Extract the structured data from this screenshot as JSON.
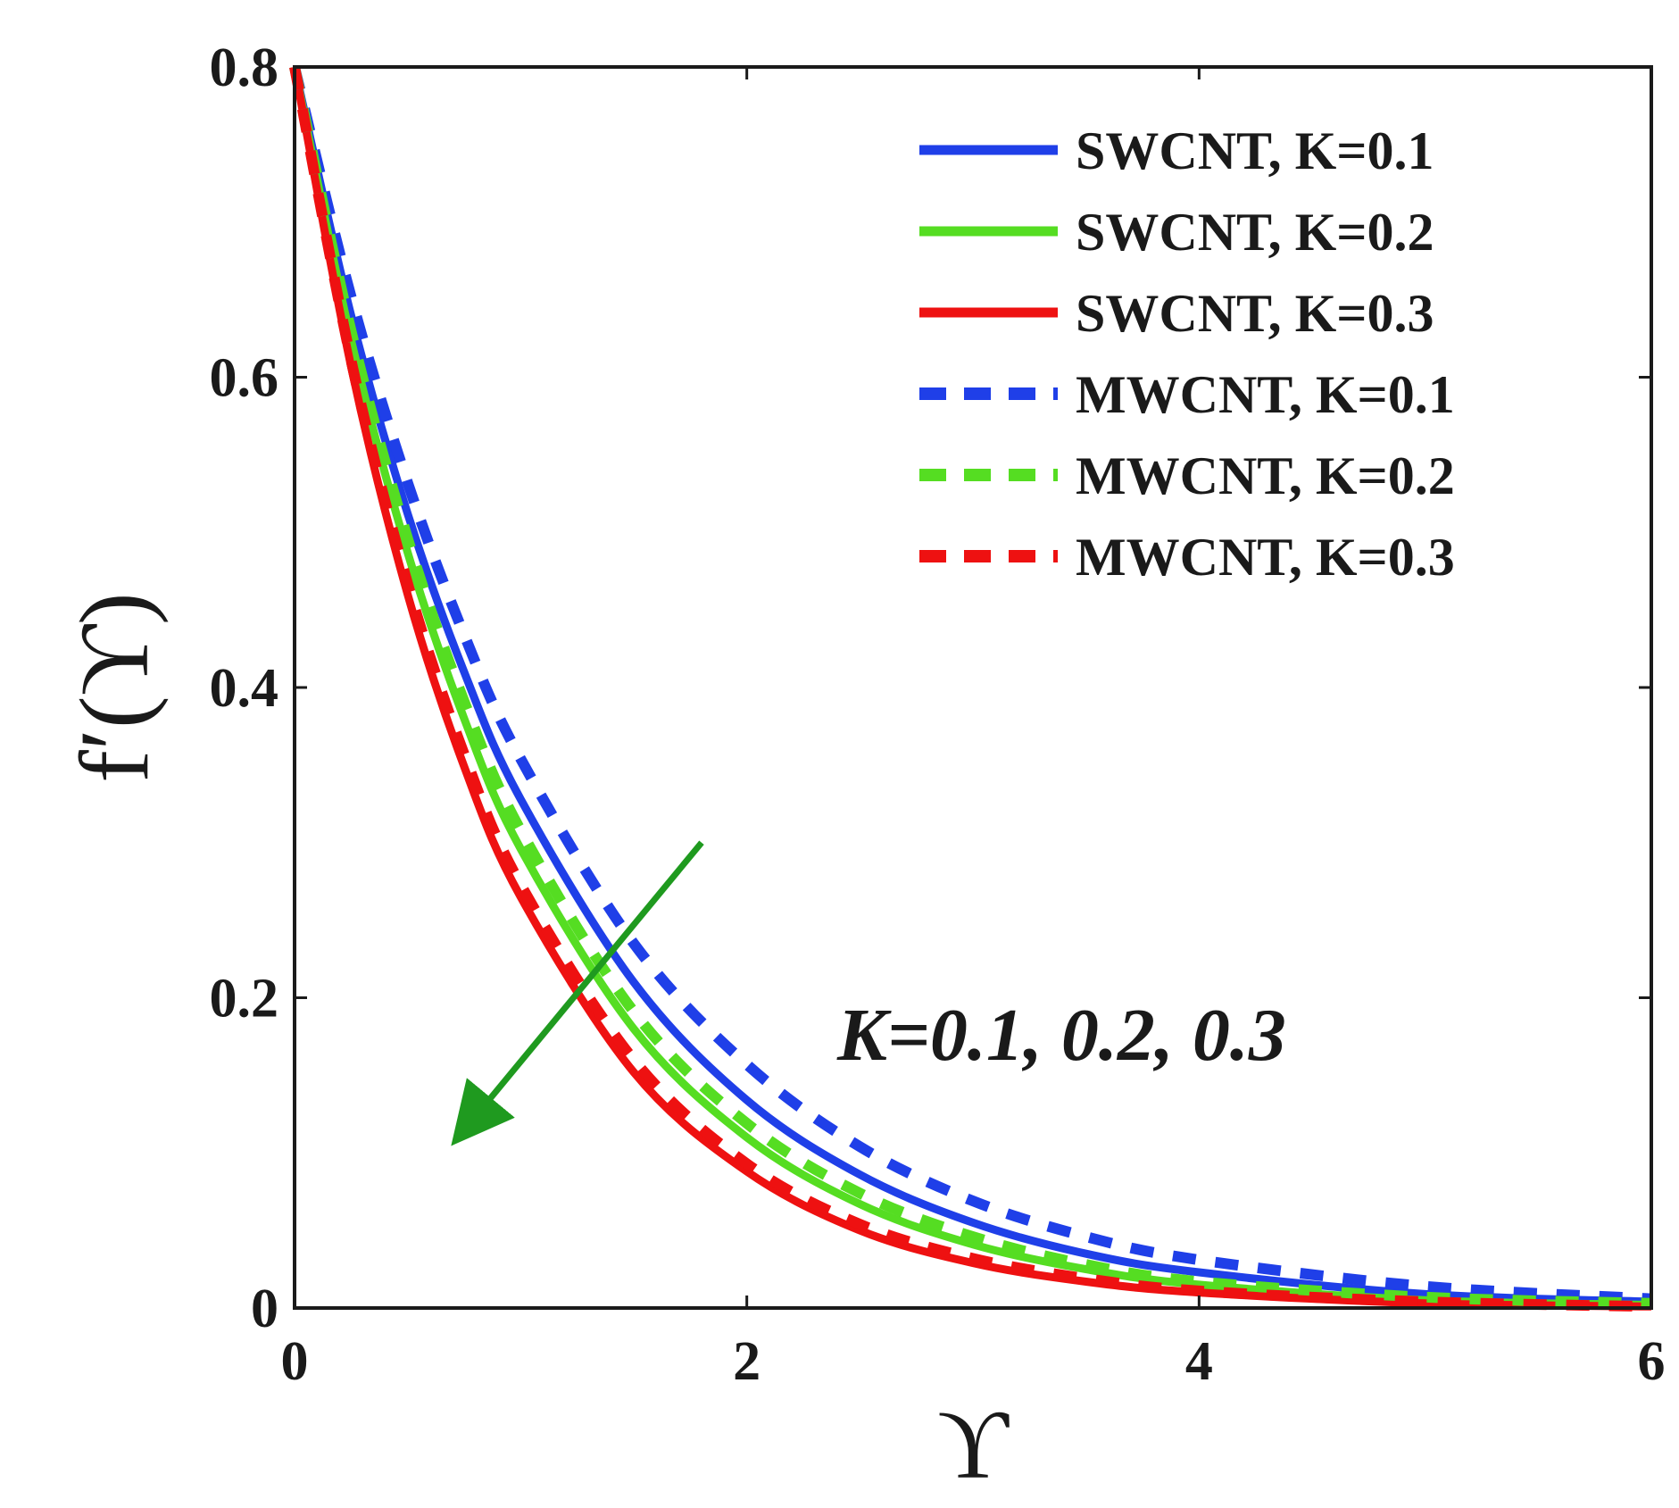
{
  "chart_data": {
    "type": "line",
    "title": "",
    "xlabel": "ϒ",
    "ylabel": "f′(ϒ)",
    "xlim": [
      0,
      6
    ],
    "ylim": [
      0,
      0.8
    ],
    "x_ticks": [
      0,
      2,
      4,
      6
    ],
    "x_tick_labels": [
      "0",
      "2",
      "4",
      "6"
    ],
    "y_ticks": [
      0,
      0.2,
      0.4,
      0.6,
      0.8
    ],
    "y_tick_labels": [
      "0",
      "0.2",
      "0.4",
      "0.6",
      "0.8"
    ],
    "grid": false,
    "legend_position": "top-right",
    "series": [
      {
        "name": "SWCNT, K=0.1",
        "label": "SWCNT, K=0.1",
        "color": "#1f3fe8",
        "style": "solid",
        "x": [
          0,
          0.25,
          0.5,
          0.75,
          1,
          1.5,
          2,
          2.5,
          3,
          3.5,
          4,
          5,
          6
        ],
        "y": [
          0.8,
          0.64,
          0.512,
          0.41,
          0.328,
          0.21,
          0.134,
          0.086,
          0.055,
          0.035,
          0.023,
          0.009,
          0.004
        ]
      },
      {
        "name": "SWCNT, K=0.2",
        "label": "SWCNT, K=0.2",
        "color": "#55dd22",
        "style": "solid",
        "x": [
          0,
          0.25,
          0.5,
          0.75,
          1,
          1.5,
          2,
          2.5,
          3,
          3.5,
          4,
          5,
          6
        ],
        "y": [
          0.8,
          0.624,
          0.487,
          0.38,
          0.296,
          0.18,
          0.11,
          0.067,
          0.041,
          0.025,
          0.015,
          0.005,
          0.002
        ]
      },
      {
        "name": "SWCNT, K=0.3",
        "label": "SWCNT, K=0.3",
        "color": "#ee1111",
        "style": "solid",
        "x": [
          0,
          0.25,
          0.5,
          0.75,
          1,
          1.5,
          2,
          2.5,
          3,
          3.5,
          4,
          5,
          6
        ],
        "y": [
          0.8,
          0.607,
          0.46,
          0.349,
          0.265,
          0.152,
          0.088,
          0.05,
          0.029,
          0.017,
          0.01,
          0.003,
          0.001
        ]
      },
      {
        "name": "MWCNT, K=0.1",
        "label": "MWCNT, K=0.1",
        "color": "#1f3fe8",
        "style": "dashed",
        "x": [
          0,
          0.25,
          0.5,
          0.75,
          1,
          1.5,
          2,
          2.5,
          3,
          3.5,
          4,
          5,
          6
        ],
        "y": [
          0.8,
          0.652,
          0.532,
          0.434,
          0.354,
          0.235,
          0.157,
          0.104,
          0.069,
          0.046,
          0.031,
          0.014,
          0.006
        ]
      },
      {
        "name": "MWCNT, K=0.2",
        "label": "MWCNT, K=0.2",
        "color": "#55dd22",
        "style": "dashed",
        "x": [
          0,
          0.25,
          0.5,
          0.75,
          1,
          1.5,
          2,
          2.5,
          3,
          3.5,
          4,
          5,
          6
        ],
        "y": [
          0.8,
          0.63,
          0.496,
          0.391,
          0.308,
          0.191,
          0.119,
          0.074,
          0.046,
          0.028,
          0.017,
          0.007,
          0.003
        ]
      },
      {
        "name": "MWCNT, K=0.3",
        "label": "MWCNT, K=0.3",
        "color": "#ee1111",
        "style": "dashed",
        "x": [
          0,
          0.25,
          0.5,
          0.75,
          1,
          1.5,
          2,
          2.5,
          3,
          3.5,
          4,
          5,
          6
        ],
        "y": [
          0.8,
          0.611,
          0.467,
          0.357,
          0.273,
          0.16,
          0.093,
          0.054,
          0.032,
          0.019,
          0.011,
          0.004,
          0.001
        ]
      }
    ],
    "annotations": [
      {
        "text": "K=0.1, 0.2, 0.3",
        "color": "#1a1a1a",
        "arrow_color": "#1f9a1f",
        "arrow_from": [
          1.8,
          0.3
        ],
        "arrow_to": [
          0.78,
          0.12
        ],
        "text_at": [
          2.4,
          0.16
        ]
      }
    ]
  }
}
